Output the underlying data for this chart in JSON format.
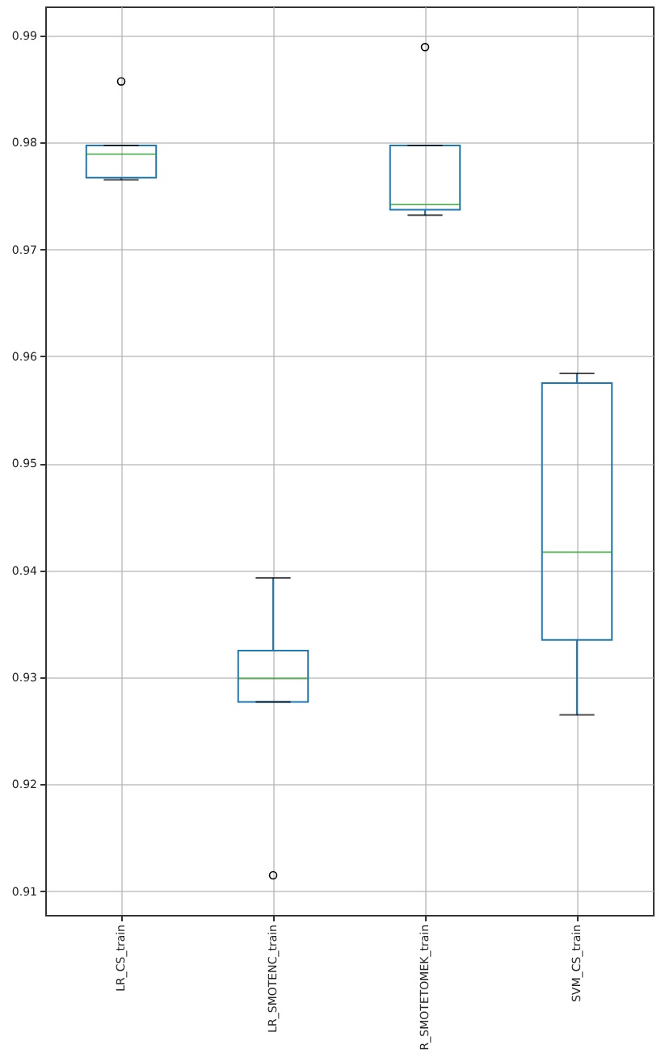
{
  "chart_data": {
    "type": "box",
    "categories": [
      "LR_CS_train",
      "LR_SMOTENC_train",
      "R_SMOTETOMEK_train",
      "SVM_CS_train"
    ],
    "boxes": [
      {
        "low": 0.9765,
        "q1": 0.9767,
        "median": 0.9789,
        "q3": 0.9797,
        "high": 0.9797,
        "outliers": [
          0.9857
        ]
      },
      {
        "low": 0.9277,
        "q1": 0.9277,
        "median": 0.9299,
        "q3": 0.9325,
        "high": 0.9393,
        "outliers": [
          0.9115
        ]
      },
      {
        "low": 0.9732,
        "q1": 0.9737,
        "median": 0.9742,
        "q3": 0.9797,
        "high": 0.9797,
        "outliers": [
          0.9889
        ]
      },
      {
        "low": 0.9265,
        "q1": 0.9335,
        "median": 0.9417,
        "q3": 0.9575,
        "high": 0.9584
      }
    ],
    "ylim": [
      0.9078,
      0.9927
    ],
    "yticks": [
      0.91,
      0.92,
      0.93,
      0.94,
      0.95,
      0.96,
      0.97,
      0.98,
      0.99
    ],
    "grid": true
  }
}
